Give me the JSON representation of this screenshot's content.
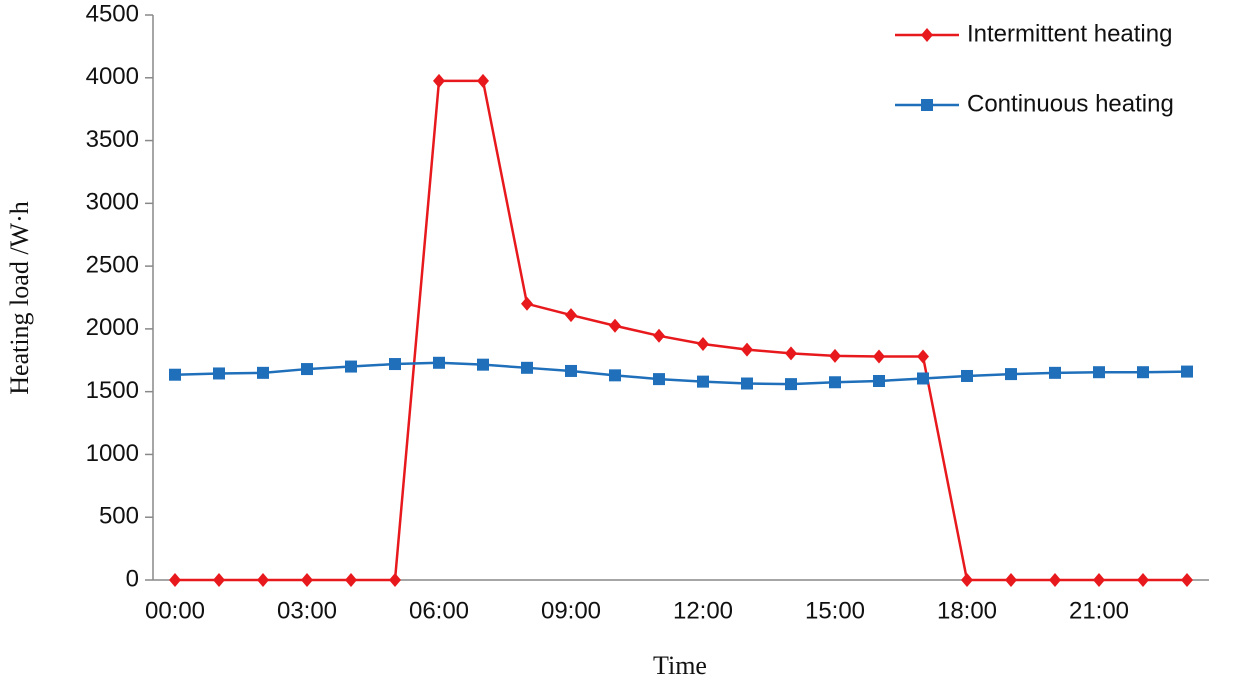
{
  "chart_data": {
    "type": "line",
    "xlabel": "Time",
    "ylabel": "Heating load /W·h",
    "categories": [
      "00:00",
      null,
      null,
      "03:00",
      null,
      null,
      "06:00",
      null,
      null,
      "09:00",
      null,
      null,
      "12:00",
      null,
      null,
      "15:00",
      null,
      null,
      "18:00",
      null,
      null,
      "21:00",
      null,
      null
    ],
    "series": [
      {
        "name": "Intermittent heating",
        "color": "#e8191d",
        "marker": "diamond",
        "values": [
          0,
          0,
          0,
          0,
          0,
          0,
          3975,
          3975,
          2200,
          2110,
          2025,
          1945,
          1880,
          1835,
          1805,
          1785,
          1780,
          1780,
          0,
          0,
          0,
          0,
          0,
          0
        ]
      },
      {
        "name": "Continuous heating",
        "color": "#1f6fba",
        "marker": "square",
        "values": [
          1635,
          1645,
          1650,
          1680,
          1700,
          1720,
          1730,
          1715,
          1690,
          1665,
          1630,
          1600,
          1580,
          1565,
          1560,
          1575,
          1585,
          1605,
          1625,
          1640,
          1650,
          1655,
          1655,
          1660
        ]
      }
    ],
    "ylim": [
      0,
      4500
    ],
    "yticks": [
      0,
      500,
      1000,
      1500,
      2000,
      2500,
      3000,
      3500,
      4000,
      4500
    ],
    "legend": "upper right"
  }
}
